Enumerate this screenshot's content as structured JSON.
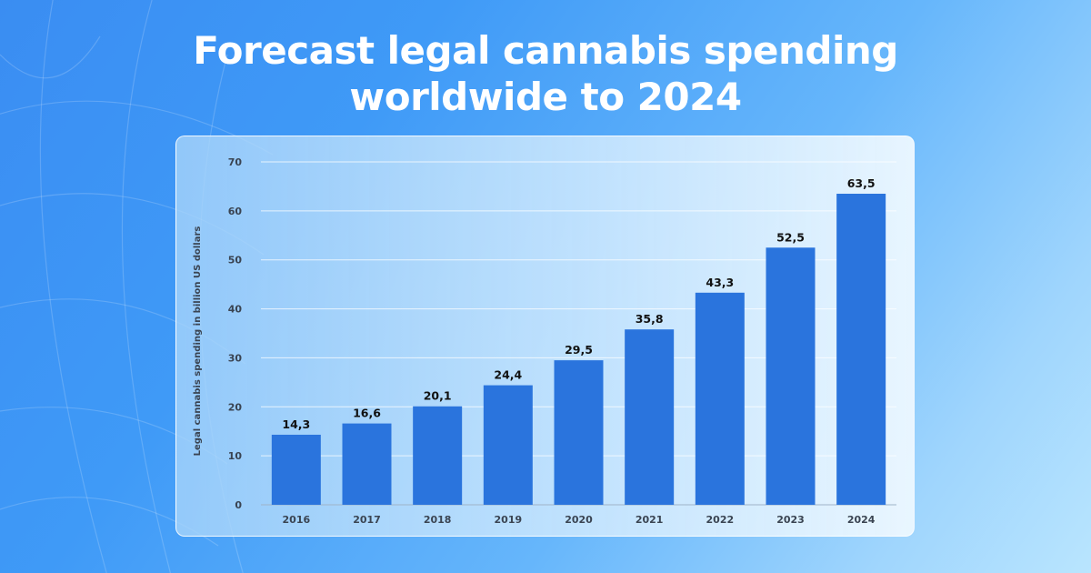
{
  "title_lines": [
    "Forecast legal cannabis spending",
    "worldwide to 2024"
  ],
  "chart_data": {
    "type": "bar",
    "title": "Forecast legal cannabis spending worldwide to 2024",
    "categories": [
      "2016",
      "2017",
      "2018",
      "2019",
      "2020",
      "2021",
      "2022",
      "2023",
      "2024"
    ],
    "values": [
      14.3,
      16.6,
      20.1,
      24.4,
      29.5,
      35.8,
      43.3,
      52.5,
      63.5
    ],
    "value_labels": [
      "14,3",
      "16,6",
      "20,1",
      "24,4",
      "29,5",
      "35,8",
      "43,3",
      "52,5",
      "63,5"
    ],
    "ylabel": "Legal cannabis spending in billion US dollars",
    "xlabel": "",
    "ylim": [
      0,
      70
    ],
    "yticks": [
      0,
      10,
      20,
      30,
      40,
      50,
      60,
      70
    ],
    "grid": true,
    "legend": "none"
  },
  "colors": {
    "bar": "#2a74dd",
    "title": "#ffffff",
    "axis_text": "#3a4452",
    "value_text": "#111111",
    "grid": "#ffffff"
  }
}
